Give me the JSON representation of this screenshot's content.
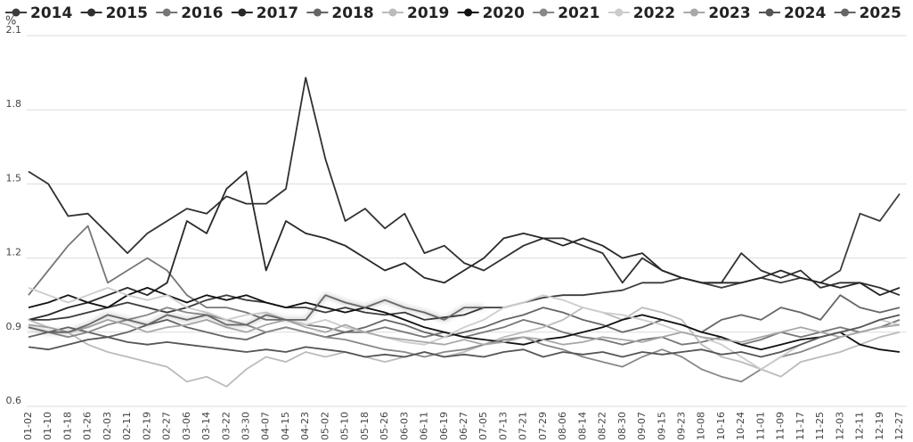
{
  "chart_data": {
    "type": "line",
    "y_unit_label": "%",
    "categories": [
      "01-02",
      "01-10",
      "01-18",
      "01-26",
      "02-03",
      "02-11",
      "02-19",
      "02-27",
      "03-06",
      "03-14",
      "03-22",
      "03-30",
      "04-07",
      "04-15",
      "04-23",
      "05-02",
      "05-10",
      "05-18",
      "05-26",
      "06-03",
      "06-11",
      "06-19",
      "06-27",
      "07-05",
      "07-13",
      "07-21",
      "07-29",
      "08-06",
      "08-14",
      "08-22",
      "08-30",
      "09-07",
      "09-15",
      "09-23",
      "10-08",
      "10-16",
      "10-24",
      "11-01",
      "11-09",
      "11-17",
      "11-25",
      "12-03",
      "12-11",
      "12-19",
      "12-27"
    ],
    "ylim": [
      0.6,
      2.1
    ],
    "yticks": [
      0.6,
      0.9,
      1.2,
      1.5,
      1.8,
      2.1
    ],
    "grid": true,
    "legend": "top",
    "series": [
      {
        "name": "2014",
        "color": "#3c3c3c",
        "values": [
          0.95,
          0.95,
          0.96,
          0.98,
          1.0,
          1.02,
          1.0,
          0.98,
          1.0,
          1.03,
          1.05,
          1.03,
          1.02,
          1.0,
          1.0,
          0.98,
          1.0,
          0.98,
          0.97,
          0.98,
          0.95,
          0.96,
          0.97,
          1.0,
          1.0,
          1.02,
          1.04,
          1.05,
          1.05,
          1.06,
          1.07,
          1.1,
          1.1,
          1.12,
          1.1,
          1.08,
          1.1,
          1.12,
          1.1,
          1.12,
          1.1,
          1.15,
          1.38,
          1.35,
          1.46
        ]
      },
      {
        "name": "2015",
        "color": "#303030",
        "values": [
          1.55,
          1.5,
          1.37,
          1.38,
          1.3,
          1.22,
          1.3,
          1.35,
          1.4,
          1.38,
          1.45,
          1.42,
          1.42,
          1.48,
          1.93,
          1.6,
          1.35,
          1.4,
          1.32,
          1.38,
          1.22,
          1.25,
          1.18,
          1.15,
          1.2,
          1.25,
          1.28,
          1.28,
          1.25,
          1.22,
          1.1,
          1.2,
          1.15,
          1.12,
          1.1,
          1.1,
          1.22,
          1.15,
          1.12,
          1.15,
          1.08,
          1.1,
          1.1,
          1.08,
          1.05
        ]
      },
      {
        "name": "2016",
        "color": "#777777",
        "values": [
          1.05,
          1.15,
          1.25,
          1.33,
          1.1,
          1.15,
          1.2,
          1.15,
          1.05,
          1.0,
          1.0,
          0.98,
          0.95,
          0.95,
          0.93,
          0.92,
          0.9,
          0.9,
          0.92,
          0.9,
          0.88,
          0.9,
          0.88,
          0.9,
          0.92,
          0.95,
          0.93,
          0.9,
          0.88,
          0.87,
          0.85,
          0.87,
          0.88,
          0.85,
          0.86,
          0.88,
          0.85,
          0.87,
          0.9,
          0.88,
          0.9,
          0.92,
          0.9,
          0.92,
          0.95
        ]
      },
      {
        "name": "2017",
        "color": "#282828",
        "values": [
          0.95,
          0.97,
          1.0,
          1.02,
          1.05,
          1.08,
          1.05,
          1.1,
          1.35,
          1.3,
          1.48,
          1.55,
          1.15,
          1.35,
          1.3,
          1.28,
          1.25,
          1.2,
          1.15,
          1.18,
          1.12,
          1.1,
          1.15,
          1.2,
          1.28,
          1.3,
          1.28,
          1.25,
          1.28,
          1.25,
          1.2,
          1.22,
          1.15,
          1.12,
          1.1,
          1.1,
          1.1,
          1.12,
          1.15,
          1.12,
          1.1,
          1.08,
          1.1,
          1.05,
          1.08
        ]
      },
      {
        "name": "2018",
        "color": "#666666",
        "values": [
          0.88,
          0.9,
          0.92,
          0.9,
          0.88,
          0.9,
          0.93,
          0.95,
          0.92,
          0.9,
          0.88,
          0.87,
          0.9,
          0.92,
          0.9,
          0.88,
          0.9,
          0.92,
          0.95,
          0.93,
          0.9,
          0.88,
          0.9,
          0.92,
          0.95,
          0.97,
          1.0,
          0.98,
          0.95,
          0.93,
          0.9,
          0.92,
          0.95,
          0.93,
          0.9,
          0.95,
          0.97,
          0.95,
          1.0,
          0.98,
          0.95,
          1.05,
          1.0,
          0.98,
          1.0
        ]
      },
      {
        "name": "2019",
        "color": "#bbbbbb",
        "values": [
          0.95,
          0.92,
          0.9,
          0.85,
          0.82,
          0.8,
          0.78,
          0.76,
          0.7,
          0.72,
          0.68,
          0.75,
          0.8,
          0.78,
          0.82,
          0.8,
          0.82,
          0.8,
          0.78,
          0.8,
          0.82,
          0.8,
          0.82,
          0.85,
          0.88,
          0.9,
          0.92,
          0.95,
          1.0,
          0.98,
          0.95,
          1.0,
          0.98,
          0.95,
          0.85,
          0.8,
          0.78,
          0.75,
          0.72,
          0.78,
          0.8,
          0.82,
          0.85,
          0.88,
          0.9
        ]
      },
      {
        "name": "2020",
        "color": "#111111",
        "values": [
          1.0,
          1.02,
          1.05,
          1.02,
          1.0,
          1.05,
          1.08,
          1.05,
          1.02,
          1.05,
          1.03,
          1.05,
          1.02,
          1.0,
          1.02,
          1.0,
          0.98,
          1.0,
          0.98,
          0.95,
          0.92,
          0.9,
          0.88,
          0.87,
          0.86,
          0.85,
          0.87,
          0.88,
          0.9,
          0.92,
          0.95,
          0.97,
          0.95,
          0.93,
          0.9,
          0.88,
          0.85,
          0.83,
          0.85,
          0.87,
          0.88,
          0.9,
          0.85,
          0.83,
          0.82
        ]
      },
      {
        "name": "2021",
        "color": "#888888",
        "values": [
          0.92,
          0.9,
          0.88,
          0.9,
          0.93,
          0.95,
          0.97,
          1.0,
          0.98,
          0.97,
          0.95,
          0.93,
          0.9,
          0.92,
          0.9,
          0.88,
          0.87,
          0.85,
          0.83,
          0.82,
          0.8,
          0.82,
          0.83,
          0.85,
          0.87,
          0.88,
          0.85,
          0.83,
          0.8,
          0.78,
          0.76,
          0.8,
          0.83,
          0.8,
          0.75,
          0.72,
          0.7,
          0.75,
          0.8,
          0.82,
          0.85,
          0.88,
          0.9,
          0.92,
          0.93
        ]
      },
      {
        "name": "2022",
        "color": "#cccccc",
        "values": [
          1.08,
          1.05,
          1.02,
          1.05,
          1.08,
          1.05,
          1.03,
          1.05,
          1.0,
          0.98,
          0.95,
          0.97,
          0.98,
          0.95,
          0.93,
          0.95,
          0.92,
          0.9,
          0.88,
          0.86,
          0.85,
          0.88,
          0.92,
          0.95,
          1.0,
          1.02,
          1.05,
          1.03,
          1.0,
          0.98,
          0.97,
          0.95,
          0.93,
          0.9,
          0.88,
          0.85,
          0.8,
          0.75,
          0.8,
          0.85,
          0.88,
          0.9,
          0.92,
          0.95,
          0.93
        ]
      },
      {
        "name": "2023",
        "color": "#a8a8a8",
        "values": [
          0.93,
          0.92,
          0.9,
          0.92,
          0.95,
          0.93,
          0.9,
          0.92,
          0.93,
          0.95,
          0.92,
          0.9,
          0.93,
          0.95,
          0.92,
          0.9,
          0.93,
          0.9,
          0.88,
          0.87,
          0.86,
          0.85,
          0.87,
          0.85,
          0.86,
          0.88,
          0.87,
          0.85,
          0.86,
          0.88,
          0.87,
          0.86,
          0.88,
          0.9,
          0.88,
          0.87,
          0.86,
          0.88,
          0.9,
          0.92,
          0.9,
          0.88,
          0.9,
          0.92,
          0.93
        ]
      },
      {
        "name": "2024",
        "color": "#555555",
        "values": [
          0.84,
          0.83,
          0.85,
          0.87,
          0.88,
          0.86,
          0.85,
          0.86,
          0.85,
          0.84,
          0.83,
          0.82,
          0.83,
          0.82,
          0.84,
          0.83,
          0.82,
          0.8,
          0.81,
          0.8,
          0.82,
          0.8,
          0.81,
          0.8,
          0.82,
          0.83,
          0.8,
          0.82,
          0.81,
          0.82,
          0.8,
          0.82,
          0.81,
          0.82,
          0.83,
          0.81,
          0.82,
          0.8,
          0.82,
          0.85,
          0.88,
          0.9,
          0.92,
          0.95,
          0.97
        ]
      },
      {
        "name": "2025",
        "color": "#666666",
        "values": [
          0.92,
          0.9,
          0.9,
          0.93,
          0.97,
          0.95,
          0.93,
          0.97,
          0.95,
          0.97,
          0.93,
          0.93,
          0.97,
          0.95,
          0.95,
          1.05,
          1.02,
          1.0,
          1.03,
          1.0,
          0.98,
          0.95,
          1.0,
          1.0,
          null,
          null,
          null,
          null,
          null,
          null,
          null,
          null,
          null,
          null,
          null,
          null,
          null,
          null,
          null,
          null,
          null,
          null,
          null,
          null,
          null
        ]
      }
    ]
  }
}
